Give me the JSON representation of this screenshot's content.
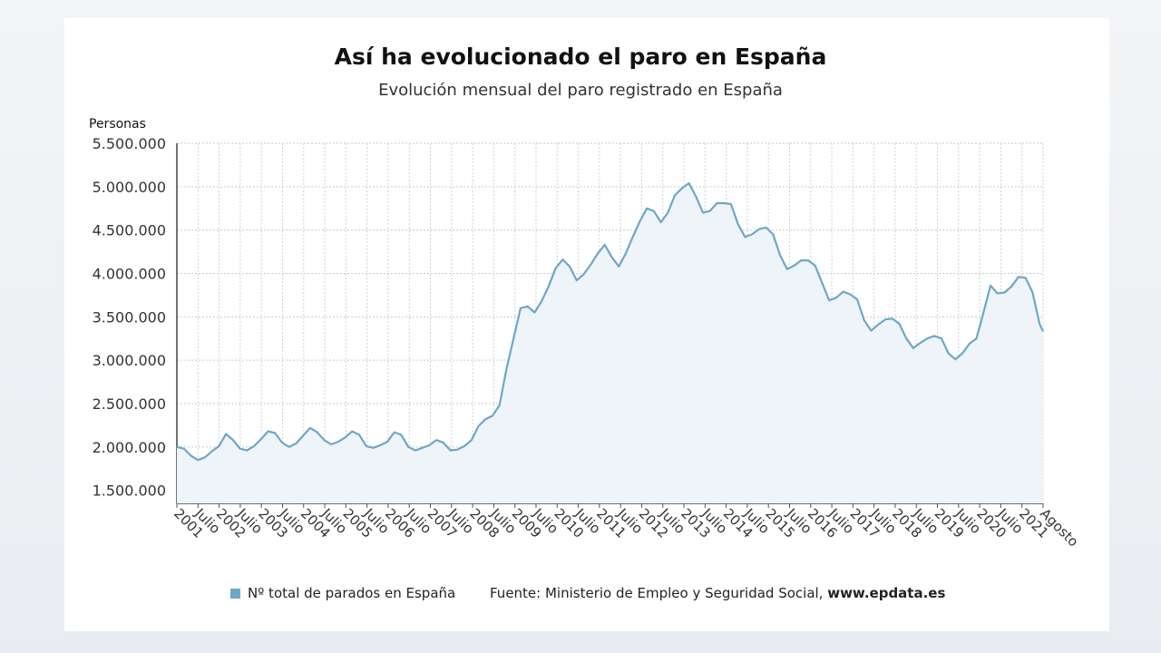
{
  "chart_data": {
    "type": "area",
    "title": "Así ha evolucionado el paro en España",
    "subtitle": "Evolución mensual del paro registrado en España",
    "ylabel": "Personas",
    "ylim": [
      1350000,
      5500000
    ],
    "yticks": [
      {
        "value": 5500000,
        "label": "5.500.000"
      },
      {
        "value": 5000000,
        "label": "5.000.000"
      },
      {
        "value": 4500000,
        "label": "4.500.000"
      },
      {
        "value": 4000000,
        "label": "4.000.000"
      },
      {
        "value": 3500000,
        "label": "3.500.000"
      },
      {
        "value": 3000000,
        "label": "3.000.000"
      },
      {
        "value": 2500000,
        "label": "2.500.000"
      },
      {
        "value": 2000000,
        "label": "2.000.000"
      },
      {
        "value": 1500000,
        "label": "1.500.000"
      }
    ],
    "xticks": [
      "2001",
      "Julio",
      "2002",
      "Julio",
      "2003",
      "Julio",
      "2004",
      "Julio",
      "2005",
      "Julio",
      "2006",
      "Julio",
      "2007",
      "Julio",
      "2008",
      "Julio",
      "2009",
      "Julio",
      "2010",
      "Julio",
      "2011",
      "Julio",
      "2012",
      "Julio",
      "2013",
      "Julio",
      "2014",
      "Julio",
      "2015",
      "Julio",
      "2016",
      "Julio",
      "2017",
      "Julio",
      "2018",
      "Julio",
      "2019",
      "Julio",
      "2020",
      "Julio",
      "2021",
      "Agosto"
    ],
    "grid": true,
    "series": [
      {
        "name": "Nº total de parados en España",
        "color": "#6ea7c6",
        "fill": "#eef4f8",
        "points": [
          [
            "2001-01",
            2000000
          ],
          [
            "2001-03",
            1980000
          ],
          [
            "2001-05",
            1900000
          ],
          [
            "2001-07",
            1850000
          ],
          [
            "2001-09",
            1880000
          ],
          [
            "2001-11",
            1950000
          ],
          [
            "2002-01",
            2010000
          ],
          [
            "2002-03",
            2150000
          ],
          [
            "2002-05",
            2080000
          ],
          [
            "2002-07",
            1980000
          ],
          [
            "2002-09",
            1960000
          ],
          [
            "2002-11",
            2010000
          ],
          [
            "2003-01",
            2090000
          ],
          [
            "2003-03",
            2180000
          ],
          [
            "2003-05",
            2160000
          ],
          [
            "2003-07",
            2050000
          ],
          [
            "2003-09",
            2000000
          ],
          [
            "2003-11",
            2040000
          ],
          [
            "2004-01",
            2130000
          ],
          [
            "2004-03",
            2220000
          ],
          [
            "2004-05",
            2170000
          ],
          [
            "2004-07",
            2080000
          ],
          [
            "2004-09",
            2030000
          ],
          [
            "2004-11",
            2060000
          ],
          [
            "2005-01",
            2110000
          ],
          [
            "2005-03",
            2180000
          ],
          [
            "2005-05",
            2140000
          ],
          [
            "2005-07",
            2010000
          ],
          [
            "2005-09",
            1990000
          ],
          [
            "2005-11",
            2020000
          ],
          [
            "2006-01",
            2060000
          ],
          [
            "2006-03",
            2170000
          ],
          [
            "2006-05",
            2140000
          ],
          [
            "2006-07",
            2000000
          ],
          [
            "2006-09",
            1960000
          ],
          [
            "2006-11",
            1990000
          ],
          [
            "2007-01",
            2020000
          ],
          [
            "2007-03",
            2080000
          ],
          [
            "2007-05",
            2050000
          ],
          [
            "2007-07",
            1960000
          ],
          [
            "2007-09",
            1970000
          ],
          [
            "2007-11",
            2010000
          ],
          [
            "2008-01",
            2080000
          ],
          [
            "2008-03",
            2240000
          ],
          [
            "2008-05",
            2320000
          ],
          [
            "2008-07",
            2360000
          ],
          [
            "2008-09",
            2480000
          ],
          [
            "2008-11",
            2900000
          ],
          [
            "2009-01",
            3250000
          ],
          [
            "2009-03",
            3600000
          ],
          [
            "2009-05",
            3620000
          ],
          [
            "2009-07",
            3550000
          ],
          [
            "2009-09",
            3680000
          ],
          [
            "2009-11",
            3850000
          ],
          [
            "2010-01",
            4060000
          ],
          [
            "2010-03",
            4160000
          ],
          [
            "2010-05",
            4080000
          ],
          [
            "2010-07",
            3920000
          ],
          [
            "2010-09",
            3990000
          ],
          [
            "2010-11",
            4100000
          ],
          [
            "2011-01",
            4230000
          ],
          [
            "2011-03",
            4330000
          ],
          [
            "2011-05",
            4190000
          ],
          [
            "2011-07",
            4080000
          ],
          [
            "2011-09",
            4230000
          ],
          [
            "2011-11",
            4420000
          ],
          [
            "2012-01",
            4600000
          ],
          [
            "2012-03",
            4750000
          ],
          [
            "2012-05",
            4720000
          ],
          [
            "2012-07",
            4590000
          ],
          [
            "2012-09",
            4700000
          ],
          [
            "2012-11",
            4900000
          ],
          [
            "2013-01",
            4980000
          ],
          [
            "2013-03",
            5040000
          ],
          [
            "2013-05",
            4890000
          ],
          [
            "2013-07",
            4700000
          ],
          [
            "2013-09",
            4720000
          ],
          [
            "2013-11",
            4810000
          ],
          [
            "2014-01",
            4810000
          ],
          [
            "2014-03",
            4800000
          ],
          [
            "2014-05",
            4570000
          ],
          [
            "2014-07",
            4420000
          ],
          [
            "2014-09",
            4450000
          ],
          [
            "2014-11",
            4510000
          ],
          [
            "2015-01",
            4530000
          ],
          [
            "2015-03",
            4450000
          ],
          [
            "2015-05",
            4210000
          ],
          [
            "2015-07",
            4050000
          ],
          [
            "2015-09",
            4090000
          ],
          [
            "2015-11",
            4150000
          ],
          [
            "2016-01",
            4150000
          ],
          [
            "2016-03",
            4090000
          ],
          [
            "2016-05",
            3890000
          ],
          [
            "2016-07",
            3690000
          ],
          [
            "2016-09",
            3720000
          ],
          [
            "2016-11",
            3790000
          ],
          [
            "2017-01",
            3760000
          ],
          [
            "2017-03",
            3700000
          ],
          [
            "2017-05",
            3460000
          ],
          [
            "2017-07",
            3340000
          ],
          [
            "2017-09",
            3410000
          ],
          [
            "2017-11",
            3470000
          ],
          [
            "2018-01",
            3480000
          ],
          [
            "2018-03",
            3420000
          ],
          [
            "2018-05",
            3250000
          ],
          [
            "2018-07",
            3140000
          ],
          [
            "2018-09",
            3200000
          ],
          [
            "2018-11",
            3250000
          ],
          [
            "2019-01",
            3280000
          ],
          [
            "2019-03",
            3250000
          ],
          [
            "2019-05",
            3080000
          ],
          [
            "2019-07",
            3010000
          ],
          [
            "2019-09",
            3080000
          ],
          [
            "2019-11",
            3190000
          ],
          [
            "2020-01",
            3250000
          ],
          [
            "2020-03",
            3550000
          ],
          [
            "2020-05",
            3860000
          ],
          [
            "2020-07",
            3770000
          ],
          [
            "2020-09",
            3780000
          ],
          [
            "2020-11",
            3850000
          ],
          [
            "2021-01",
            3960000
          ],
          [
            "2021-03",
            3950000
          ],
          [
            "2021-05",
            3780000
          ],
          [
            "2021-07",
            3420000
          ],
          [
            "2021-08",
            3330000
          ]
        ]
      }
    ]
  },
  "legend": {
    "series_label": "Nº total de parados en España"
  },
  "footer": {
    "source_prefix": "Fuente: Ministerio de Empleo y Seguridad Social, ",
    "source_site": "www.epdata.es"
  }
}
